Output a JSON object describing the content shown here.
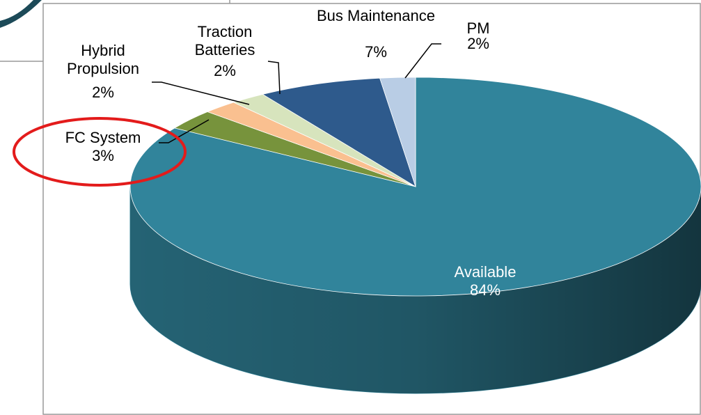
{
  "chart_data": {
    "type": "pie",
    "categories": [
      "Available",
      "FC System",
      "Hybrid Propulsion",
      "Traction Batteries",
      "Bus Maintenance",
      "PM"
    ],
    "values": [
      84,
      3,
      2,
      2,
      7,
      2
    ],
    "value_labels": [
      "84%",
      "3%",
      "2%",
      "2%",
      "7%",
      "2%"
    ],
    "colors": [
      "#31849b",
      "#77933c",
      "#fac090",
      "#d7e4bd",
      "#2e5a8c",
      "#b9cde5"
    ]
  }
}
